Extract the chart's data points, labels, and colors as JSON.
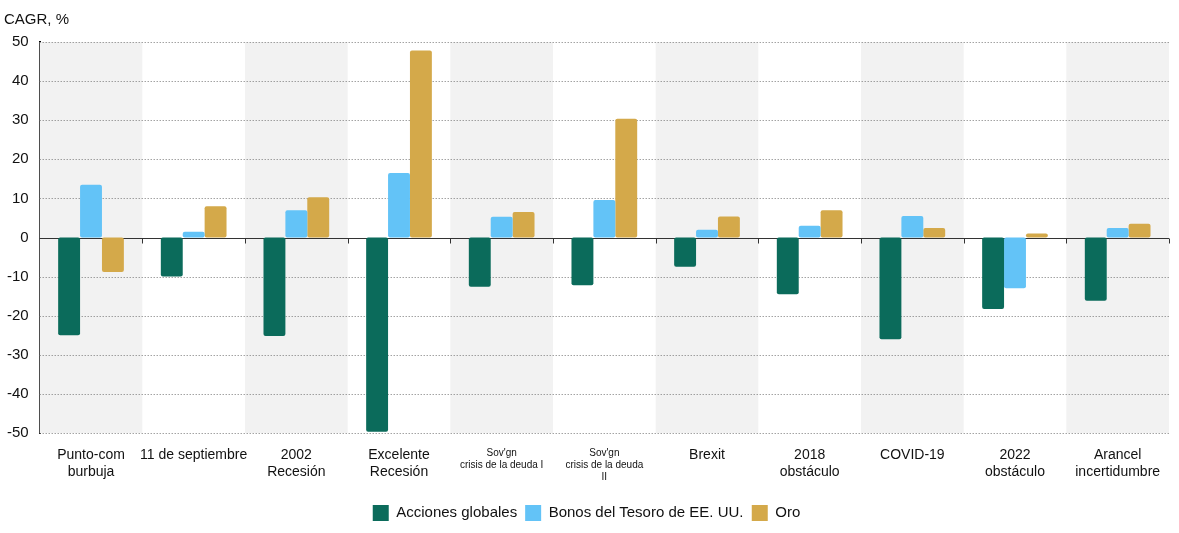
{
  "chart_data": {
    "type": "bar",
    "ylabel": "CAGR, %",
    "categories": [
      "Punto-com\nburbuja",
      "11 de septiembre",
      "2002\nRecesión",
      "Excelente\nRecesión",
      "Sov'gn\ncrisis de la deuda I",
      "Sov'gn\ncrisis de la deuda\nII",
      "Brexit",
      "2018\nobstáculo",
      "COVID-19",
      "2022\nobstáculo",
      "Arancel\nincertidumbre"
    ],
    "series": [
      {
        "name": "Acciones globales",
        "color": "#0b6b5b",
        "values": [
          -25,
          -10,
          -25.2,
          -49.7,
          -12.6,
          -12.2,
          -7.5,
          -14.5,
          -26,
          -18.3,
          -16.2
        ]
      },
      {
        "name": "Bonos del Tesoro de EE. UU.",
        "color": "#63c3f7",
        "values": [
          13.5,
          1.5,
          7,
          16.5,
          5.3,
          9.6,
          2,
          3,
          5.5,
          -13,
          2.4
        ]
      },
      {
        "name": "Oro",
        "color": "#d4a94a",
        "values": [
          -8.8,
          8,
          10.3,
          47.8,
          6.5,
          30.4,
          5.4,
          7,
          2.4,
          1,
          3.5
        ]
      }
    ],
    "ylim": [
      -50,
      50
    ],
    "yticks": [
      -50,
      -40,
      -30,
      -20,
      -10,
      0,
      10,
      20,
      30,
      40,
      50
    ],
    "grid": "y",
    "legend": "bottom",
    "bands": [
      {
        "axis": "x",
        "from": "Punto-com\nburbuja",
        "to": "Punto-com\nburbuja",
        "color": "#f2f2f2"
      },
      {
        "axis": "x",
        "from": "2002\nRecesión",
        "to": "2002\nRecesión",
        "color": "#f2f2f2"
      },
      {
        "axis": "x",
        "from": "Sov'gn\ncrisis de la deuda I",
        "to": "Sov'gn\ncrisis de la deuda I",
        "color": "#f2f2f2"
      },
      {
        "axis": "x",
        "from": "Brexit",
        "to": "Brexit",
        "color": "#f2f2f2"
      },
      {
        "axis": "x",
        "from": "COVID-19",
        "to": "COVID-19",
        "color": "#f2f2f2"
      },
      {
        "axis": "x",
        "from": "Arancel\nincertidumbre",
        "to": "Arancel\nincertidumbre",
        "color": "#f2f2f2"
      }
    ]
  }
}
